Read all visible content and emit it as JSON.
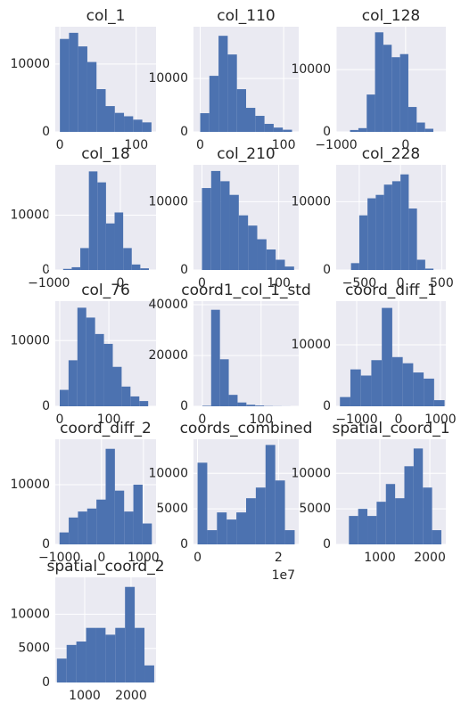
{
  "chart_data": [
    {
      "type": "histogram",
      "title": "col_1",
      "bins": [
        0,
        12,
        24,
        36,
        48,
        60,
        72,
        84,
        96,
        108,
        120
      ],
      "counts": [
        13700,
        14600,
        12600,
        10300,
        6300,
        3800,
        2800,
        2300,
        1800,
        1400
      ],
      "xlim": [
        -6,
        126
      ],
      "ylim": [
        0,
        15500
      ],
      "xticks": [
        0,
        100
      ],
      "yticks": [
        0,
        10000
      ],
      "grid": true,
      "color": "#4c72b0"
    },
    {
      "type": "histogram",
      "title": "col_110",
      "bins": [
        0,
        11,
        22,
        33,
        44,
        55,
        66,
        77,
        88,
        99,
        110
      ],
      "counts": [
        3500,
        10500,
        18000,
        14500,
        8000,
        4500,
        3000,
        1500,
        800,
        400
      ],
      "xlim": [
        -8,
        118
      ],
      "ylim": [
        0,
        19700
      ],
      "xticks": [
        0,
        100
      ],
      "yticks": [
        0,
        10000
      ],
      "grid": true,
      "color": "#4c72b0"
    },
    {
      "type": "histogram",
      "title": "col_128",
      "bins": [
        -800,
        -680,
        -560,
        -440,
        -320,
        -200,
        -80,
        40,
        160,
        280,
        400
      ],
      "counts": [
        300,
        600,
        6000,
        16000,
        14000,
        12000,
        12500,
        4000,
        1500,
        500
      ],
      "xlim": [
        -1000,
        580
      ],
      "ylim": [
        0,
        16900
      ],
      "xticks": [
        {
          "value": -1000,
          "label": "−1000"
        },
        0
      ],
      "yticks": [
        0,
        10000
      ],
      "grid": true,
      "color": "#4c72b0"
    },
    {
      "type": "histogram",
      "title": "col_18",
      "bins": [
        -800,
        -680,
        -560,
        -440,
        -320,
        -200,
        -80,
        40,
        160,
        280,
        400
      ],
      "counts": [
        200,
        500,
        4000,
        18000,
        16000,
        8500,
        10500,
        4000,
        1000,
        300
      ],
      "xlim": [
        -910,
        500
      ],
      "ylim": [
        0,
        19200
      ],
      "xticks": [
        {
          "value": -1000,
          "label": "−1000"
        },
        0
      ],
      "yticks": [
        0,
        10000
      ],
      "grid": true,
      "color": "#4c72b0"
    },
    {
      "type": "histogram",
      "title": "col_210",
      "bins": [
        0,
        12,
        24,
        36,
        48,
        60,
        72,
        84,
        96,
        108,
        120
      ],
      "counts": [
        12000,
        14500,
        13000,
        11000,
        8000,
        6500,
        4500,
        3000,
        1500,
        500
      ],
      "xlim": [
        -11,
        126
      ],
      "ylim": [
        0,
        15400
      ],
      "xticks": [
        0,
        100
      ],
      "yticks": [
        0,
        10000
      ],
      "grid": true,
      "color": "#4c72b0"
    },
    {
      "type": "histogram",
      "title": "col_228",
      "bins": [
        -600,
        -500,
        -400,
        -300,
        -200,
        -100,
        0,
        100,
        200,
        300,
        400
      ],
      "counts": [
        1000,
        8000,
        10500,
        11000,
        12500,
        13000,
        14000,
        9000,
        1500,
        200
      ],
      "xlim": [
        -780,
        550
      ],
      "ylim": [
        0,
        15400
      ],
      "xticks": [
        {
          "value": -500,
          "label": "−500"
        },
        0,
        500
      ],
      "yticks": [
        0,
        10000
      ],
      "grid": true,
      "color": "#4c72b0"
    },
    {
      "type": "histogram",
      "title": "col_76",
      "bins": [
        0,
        18,
        36,
        54,
        72,
        90,
        108,
        126,
        144,
        162,
        180
      ],
      "counts": [
        2500,
        7000,
        15000,
        13500,
        11000,
        9500,
        6000,
        3000,
        1500,
        800
      ],
      "xlim": [
        -9,
        196
      ],
      "ylim": [
        0,
        16000
      ],
      "xticks": [
        0,
        100
      ],
      "yticks": [
        0,
        10000
      ],
      "grid": true,
      "color": "#4c72b0"
    },
    {
      "type": "histogram",
      "title": "coord1_col_1_std",
      "bins": [
        0,
        15,
        30,
        45,
        60,
        75,
        90,
        105,
        120,
        135,
        150
      ],
      "counts": [
        200,
        38000,
        18500,
        4500,
        1500,
        600,
        300,
        100,
        50,
        20
      ],
      "xlim": [
        -15,
        164
      ],
      "ylim": [
        0,
        41400
      ],
      "xticks": [
        0,
        100
      ],
      "yticks": [
        0,
        20000,
        40000
      ],
      "grid": true,
      "color": "#4c72b0"
    },
    {
      "type": "histogram",
      "title": "coord_diff_1",
      "bins": [
        -1400,
        -1150,
        -900,
        -650,
        -400,
        -150,
        100,
        350,
        600,
        850,
        1100
      ],
      "counts": [
        1500,
        6000,
        5000,
        7500,
        16000,
        8000,
        7000,
        5500,
        4500,
        1000
      ],
      "xlim": [
        -1490,
        1130
      ],
      "ylim": [
        0,
        17100
      ],
      "xticks": [
        {
          "value": -1000,
          "label": "−1000"
        },
        0,
        1000
      ],
      "yticks": [
        0,
        10000
      ],
      "grid": true,
      "color": "#4c72b0"
    },
    {
      "type": "histogram",
      "title": "coord_diff_2",
      "bins": [
        -1000,
        -780,
        -560,
        -340,
        -120,
        100,
        320,
        540,
        760,
        980,
        1200
      ],
      "counts": [
        2000,
        4500,
        5500,
        6000,
        7500,
        16000,
        9000,
        5500,
        10000,
        3500
      ],
      "xlim": [
        -1100,
        1300
      ],
      "ylim": [
        0,
        17600
      ],
      "xticks": [
        {
          "value": -1000,
          "label": "−1000"
        },
        0,
        1000
      ],
      "yticks": [
        0,
        10000
      ],
      "grid": true,
      "color": "#4c72b0"
    },
    {
      "type": "histogram",
      "title": "coords_combined",
      "bins": [
        0,
        0.24,
        0.48,
        0.72,
        0.96,
        1.2,
        1.44,
        1.68,
        1.92,
        2.16,
        2.4
      ],
      "counts": [
        11500,
        2000,
        4500,
        3500,
        4500,
        6500,
        8000,
        14000,
        9000,
        2000
      ],
      "xlim": [
        -0.1,
        2.5
      ],
      "ylim": [
        0,
        14800
      ],
      "xticks": [
        0,
        2
      ],
      "x_offset_label": "1e7",
      "yticks": [
        0,
        5000,
        10000
      ],
      "grid": true,
      "color": "#4c72b0"
    },
    {
      "type": "histogram",
      "title": "spatial_coord_1",
      "bins": [
        380,
        565,
        750,
        935,
        1120,
        1305,
        1490,
        1675,
        1860,
        2045,
        2230
      ],
      "counts": [
        4000,
        5000,
        4000,
        6000,
        8500,
        6500,
        11000,
        13500,
        8000,
        2000
      ],
      "xlim": [
        125,
        2320
      ],
      "ylim": [
        0,
        14800
      ],
      "xticks": [
        1000,
        2000
      ],
      "yticks": [
        0,
        5000,
        10000
      ],
      "grid": true,
      "color": "#4c72b0"
    },
    {
      "type": "histogram",
      "title": "spatial_coord_2",
      "bins": [
        400,
        610,
        820,
        1030,
        1240,
        1450,
        1660,
        1870,
        2080,
        2290,
        2500
      ],
      "counts": [
        3500,
        5500,
        6000,
        8000,
        8000,
        7000,
        8000,
        14000,
        8000,
        2500
      ],
      "xlim": [
        365,
        2540
      ],
      "ylim": [
        0,
        15400
      ],
      "xticks": [
        1000,
        2000
      ],
      "yticks": [
        0,
        5000,
        10000
      ],
      "grid": true,
      "color": "#4c72b0"
    }
  ]
}
